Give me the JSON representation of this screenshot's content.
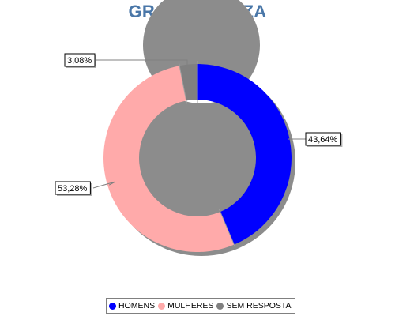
{
  "chart_data": {
    "type": "pie",
    "variant": "donut",
    "title": "GRÁFICO PIZZA",
    "title_color": "#4a77a8",
    "slices": [
      {
        "name": "HOMENS",
        "value": 43.64,
        "label": "43,64%",
        "color": "#0000ff"
      },
      {
        "name": "MULHERES",
        "value": 53.28,
        "label": "53,28%",
        "color": "#ffaaaa"
      },
      {
        "name": "SEM RESPOSTA",
        "value": 3.08,
        "label": "3,08%",
        "color": "#808080"
      }
    ],
    "start_angle_deg": 0,
    "direction": "clockwise",
    "legend_position": "bottom"
  }
}
